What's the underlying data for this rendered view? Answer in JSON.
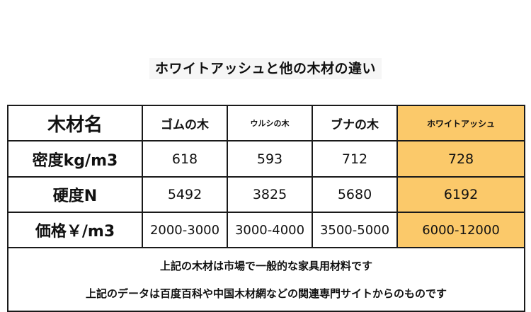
{
  "title": "ホワイトアッシュと他の木材の違い",
  "table": {
    "header": [
      "木材名",
      "ゴムの木",
      "ウルシの木",
      "ブナの木",
      "ホワイトアッシュ"
    ],
    "rows": [
      {
        "label": "密度kg/m3",
        "values": [
          "618",
          "593",
          "712",
          "728"
        ]
      },
      {
        "label": "硬度N",
        "values": [
          "5492",
          "3825",
          "5680",
          "6192"
        ]
      },
      {
        "label": "価格￥/m3",
        "values": [
          "2000-3000",
          "3000-4000",
          "3500-5000",
          "6000-12000"
        ]
      }
    ]
  },
  "notes": [
    "上記の木材は市場で一般的な家具用材料です",
    "上記のデータは百度百科や中国木材網などの関連専門サイトからのものです"
  ],
  "colors": {
    "highlight": "#fbc96a"
  }
}
